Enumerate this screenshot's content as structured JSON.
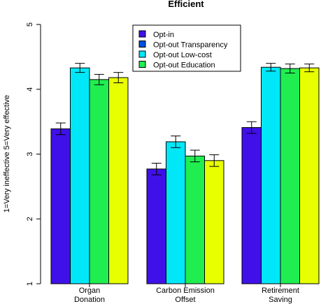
{
  "chart_data": {
    "type": "bar",
    "title": "Efficient",
    "ylabel": "1=Very ineffective 5=Very effective",
    "xlabel": "",
    "ylim": [
      1,
      5
    ],
    "yticks": [
      1,
      2,
      3,
      4,
      5
    ],
    "grid": false,
    "legend_position": "top",
    "categories": [
      [
        "Organ",
        "Donation"
      ],
      [
        "Carbon Emission",
        "Offset"
      ],
      [
        "Retirement",
        "Saving"
      ]
    ],
    "series": [
      {
        "name": "Opt-in",
        "color": "#4010e8",
        "values": [
          3.39,
          2.77,
          3.41
        ],
        "err": [
          0.09,
          0.09,
          0.09
        ]
      },
      {
        "name": "Opt-out Transparency",
        "color": "#0050e0",
        "values": [
          null,
          null,
          null
        ],
        "err": [
          null,
          null,
          null
        ]
      },
      {
        "name": "Opt-out Low-cost",
        "color": "#00e8f8",
        "values": [
          4.33,
          3.19,
          4.34
        ],
        "err": [
          0.07,
          0.09,
          0.06
        ]
      },
      {
        "name": "Opt-out Education",
        "color": "#20ee50",
        "values": [
          4.15,
          2.97,
          4.32
        ],
        "err": [
          0.08,
          0.09,
          0.07
        ]
      },
      {
        "name": "",
        "color": "#e8ff00",
        "values": [
          4.18,
          2.9,
          4.33
        ],
        "err": [
          0.08,
          0.09,
          0.06
        ]
      }
    ]
  }
}
